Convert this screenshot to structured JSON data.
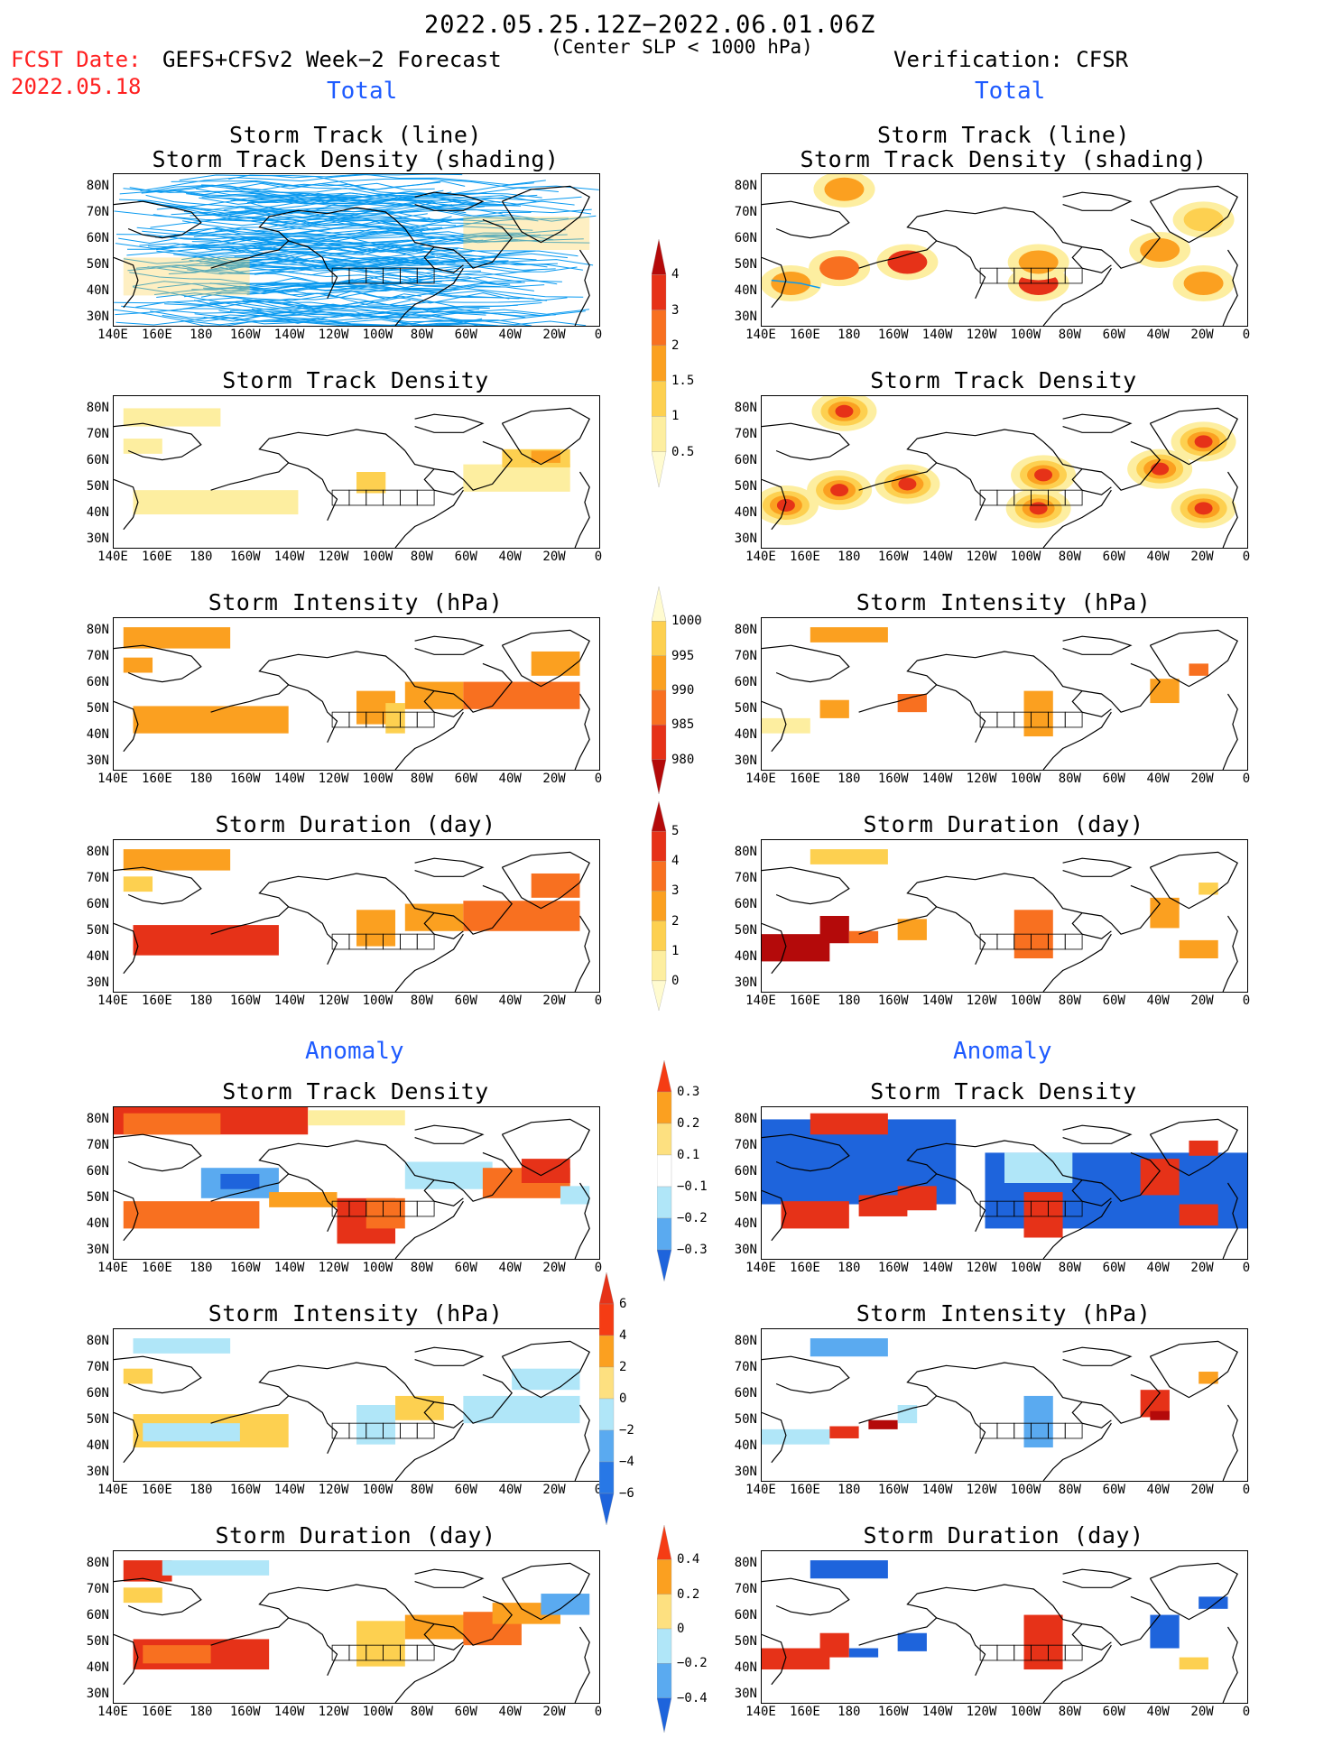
{
  "header": {
    "period": "2022.05.25.12Z−2022.06.01.06Z",
    "fcst_label": "FCST Date:",
    "fcst_date": "2022.05.18",
    "model": "GEFS+CFSv2 Week−2 Forecast",
    "criterion": "(Center SLP < 1000 hPa)",
    "verification": "Verification: CFSR"
  },
  "sections": {
    "total_left": "Total",
    "total_right": "Total",
    "anomaly_left": "Anomaly",
    "anomaly_right": "Anomaly"
  },
  "panel_titles": {
    "track": [
      "Storm Track (line)",
      "Storm Track Density (shading)"
    ],
    "density": "Storm Track Density",
    "intensity": "Storm Intensity (hPa)",
    "duration": "Storm Duration (day)"
  },
  "axes": {
    "lat_labels": [
      "80N",
      "70N",
      "60N",
      "50N",
      "40N",
      "30N"
    ],
    "lon_labels": [
      "140E",
      "160E",
      "180",
      "160W",
      "140W",
      "120W",
      "100W",
      "80W",
      "60W",
      "40W",
      "20W",
      "0"
    ]
  },
  "colorbars": {
    "density_total": {
      "labels": [
        "4",
        "3",
        "2",
        "1.5",
        "1",
        "0.5"
      ],
      "colors": [
        "#b40a0a",
        "#e63218",
        "#f87020",
        "#fba020",
        "#fdd050",
        "#fdeea0",
        "#fffbd0"
      ]
    },
    "intensity_total": {
      "labels": [
        "1000",
        "995",
        "990",
        "985",
        "980"
      ],
      "colors": [
        "#fffbd0",
        "#fdd050",
        "#fba020",
        "#f87020",
        "#e63218",
        "#b40a0a"
      ]
    },
    "duration_total": {
      "labels": [
        "5",
        "4",
        "3",
        "2",
        "1",
        "0"
      ],
      "colors": [
        "#b40a0a",
        "#e63218",
        "#f87020",
        "#fba020",
        "#fdd050",
        "#fdeea0",
        "#fffbd0"
      ]
    },
    "density_anom": {
      "labels": [
        "0.3",
        "0.2",
        "0.1",
        "−0.1",
        "−0.2",
        "−0.3"
      ],
      "colors": [
        "#f53c14",
        "#fba020",
        "#fde080",
        "#ffffff",
        "#b0e6f8",
        "#5aaaf0",
        "#1e64dc"
      ]
    },
    "intensity_anom": {
      "labels": [
        "6",
        "4",
        "2",
        "0",
        "−2",
        "−4",
        "−6"
      ],
      "colors": [
        "#e63218",
        "#f53c14",
        "#fba020",
        "#fde080",
        "#b0e6f8",
        "#5aaaf0",
        "#2878e6",
        "#1e64dc"
      ]
    },
    "duration_anom": {
      "labels": [
        "0.4",
        "0.2",
        "0",
        "−0.2",
        "−0.4"
      ],
      "colors": [
        "#f53c14",
        "#fba020",
        "#fde080",
        "#b0e6f8",
        "#5aaaf0",
        "#1e64dc"
      ]
    }
  },
  "colors": {
    "blue_text": "#1e5bff",
    "red_text": "#ff2020",
    "track_line": "#0a9af0"
  }
}
